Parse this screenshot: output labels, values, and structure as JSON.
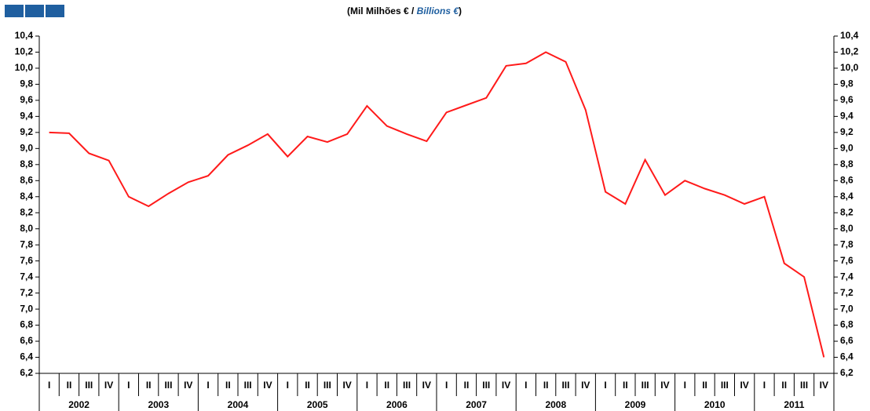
{
  "chart_data": {
    "type": "line",
    "title": [
      "(Mil Milhões € / ",
      "Billions €",
      ")"
    ],
    "categories": [
      "I",
      "II",
      "III",
      "IV",
      "I",
      "II",
      "III",
      "IV",
      "I",
      "II",
      "III",
      "IV",
      "I",
      "II",
      "III",
      "IV",
      "I",
      "II",
      "III",
      "IV",
      "I",
      "II",
      "III",
      "IV",
      "I",
      "II",
      "III",
      "IV",
      "I",
      "II",
      "III",
      "IV",
      "I",
      "II",
      "III",
      "IV",
      "I",
      "II",
      "III",
      "IV"
    ],
    "years": [
      "2002",
      "2003",
      "2004",
      "2005",
      "2006",
      "2007",
      "2008",
      "2009",
      "2010",
      "2011"
    ],
    "series": [
      {
        "color": "#ff1a1a",
        "values": [
          9.2,
          9.19,
          8.94,
          8.85,
          8.4,
          8.28,
          8.44,
          8.58,
          8.66,
          8.92,
          9.04,
          9.18,
          8.9,
          9.15,
          9.08,
          9.18,
          9.53,
          9.28,
          9.18,
          9.09,
          9.45,
          9.54,
          9.63,
          10.03,
          10.06,
          10.2,
          10.08,
          9.48,
          8.46,
          8.31,
          8.86,
          8.42,
          8.6,
          8.5,
          8.42,
          8.31,
          8.4,
          7.57,
          7.4,
          6.4
        ]
      }
    ],
    "ylim": [
      6.2,
      10.4
    ],
    "yticks": [
      {
        "value": 6.2,
        "label": "6,2"
      },
      {
        "value": 6.4,
        "label": "6,4"
      },
      {
        "value": 6.6,
        "label": "6,6"
      },
      {
        "value": 6.8,
        "label": "6,8"
      },
      {
        "value": 7.0,
        "label": "7,0"
      },
      {
        "value": 7.2,
        "label": "7,2"
      },
      {
        "value": 7.4,
        "label": "7,4"
      },
      {
        "value": 7.6,
        "label": "7,6"
      },
      {
        "value": 7.8,
        "label": "7,8"
      },
      {
        "value": 8.0,
        "label": "8,0"
      },
      {
        "value": 8.2,
        "label": "8,2"
      },
      {
        "value": 8.4,
        "label": "8,4"
      },
      {
        "value": 8.6,
        "label": "8,6"
      },
      {
        "value": 8.8,
        "label": "8,8"
      },
      {
        "value": 9.0,
        "label": "9,0"
      },
      {
        "value": 9.2,
        "label": "9,2"
      },
      {
        "value": 9.4,
        "label": "9,4"
      },
      {
        "value": 9.6,
        "label": "9,6"
      },
      {
        "value": 9.8,
        "label": "9,8"
      },
      {
        "value": 10.0,
        "label": "10,0"
      },
      {
        "value": 10.2,
        "label": "10,2"
      },
      {
        "value": 10.4,
        "label": "10,4"
      }
    ]
  }
}
